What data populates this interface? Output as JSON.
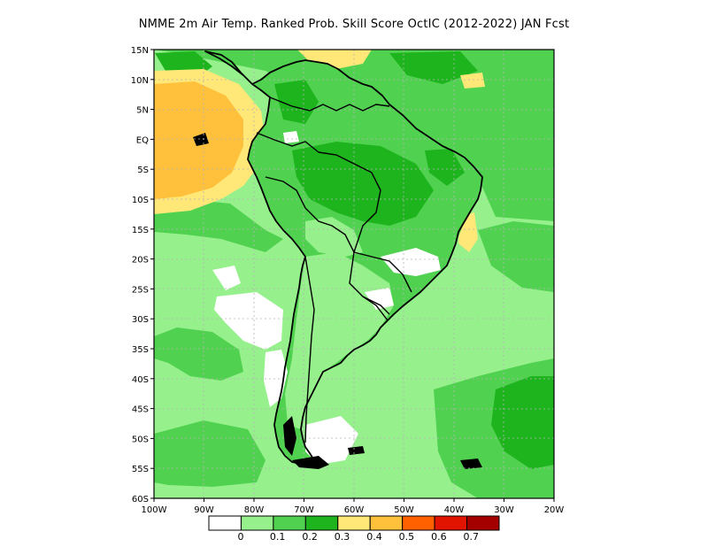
{
  "title": "NMME  2m Air Temp. Ranked Prob. Skill Score OctIC (2012-2022) JAN Fcst",
  "lat_ticks": [
    "15N",
    "10N",
    "5N",
    "EQ",
    "5S",
    "10S",
    "15S",
    "20S",
    "25S",
    "30S",
    "35S",
    "40S",
    "45S",
    "50S",
    "55S",
    "60S"
  ],
  "lon_ticks": [
    "100W",
    "90W",
    "80W",
    "70W",
    "60W",
    "50W",
    "40W",
    "30W",
    "20W"
  ],
  "colorbar": {
    "labels": [
      "0",
      "0.1",
      "0.2",
      "0.3",
      "0.4",
      "0.5",
      "0.6",
      "0.7"
    ],
    "colors": [
      "#ffffff",
      "#96f08c",
      "#50d250",
      "#1eb41e",
      "#ffe878",
      "#ffc03c",
      "#ff6000",
      "#e11400",
      "#a50000"
    ]
  },
  "colors": {
    "ocean_base": "#96f08c",
    "land_base": "#50d250",
    "coast": "#000000",
    "grid": "#b4b4b4"
  }
}
